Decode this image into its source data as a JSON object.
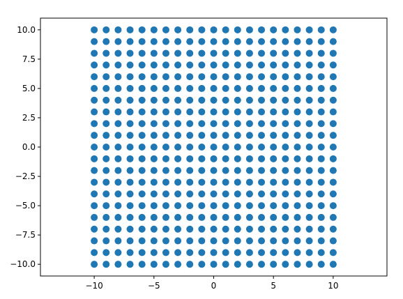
{
  "chart_data": {
    "type": "scatter",
    "title": "",
    "xlabel": "",
    "ylabel": "",
    "xlim": [
      -14.5,
      14.5
    ],
    "ylim": [
      -11,
      11
    ],
    "grid": false,
    "marker_color": "#1f77b4",
    "series": [
      {
        "x_values": [
          -10,
          -9,
          -8,
          -7,
          -6,
          -5,
          -4,
          -3,
          -2,
          -1,
          0,
          1,
          2,
          3,
          4,
          5,
          6,
          7,
          8,
          9,
          10
        ],
        "y_values": [
          -10,
          -9,
          -8,
          -7,
          -6,
          -5,
          -4,
          -3,
          -2,
          -1,
          0,
          1,
          2,
          3,
          4,
          5,
          6,
          7,
          8,
          9,
          10
        ],
        "pattern": "grid: every x value paired with every y value"
      }
    ],
    "x_ticks": [
      -10,
      -5,
      0,
      5,
      10
    ],
    "x_tick_labels": [
      "−10",
      "−5",
      "0",
      "5",
      "10"
    ],
    "y_ticks": [
      -10,
      -7.5,
      -5,
      -2.5,
      0,
      2.5,
      5,
      7.5,
      10
    ],
    "y_tick_labels": [
      "−10.0",
      "−7.5",
      "−5.0",
      "−2.5",
      "0.0",
      "2.5",
      "5.0",
      "7.5",
      "10.0"
    ]
  }
}
